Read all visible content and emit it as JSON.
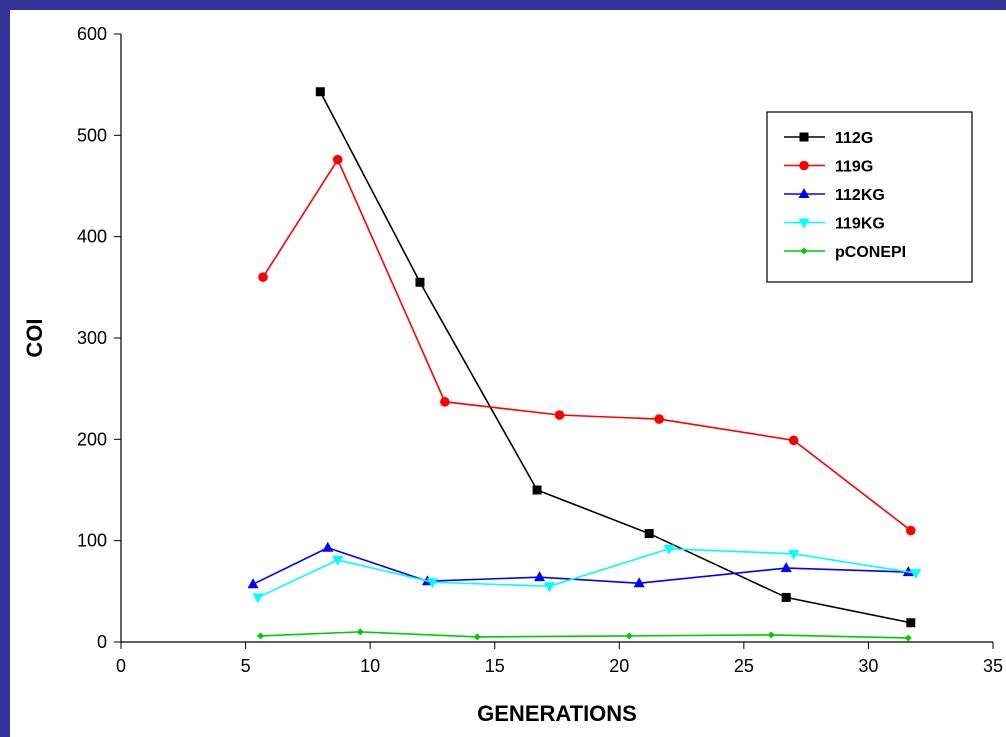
{
  "chart_data": {
    "type": "line",
    "xlabel": "GENERATIONS",
    "ylabel": "COI",
    "xlim": [
      0,
      35
    ],
    "ylim": [
      0,
      600
    ],
    "x_ticks": [
      0,
      5,
      10,
      15,
      20,
      25,
      30,
      35
    ],
    "y_ticks": [
      0,
      100,
      200,
      300,
      400,
      500,
      600
    ],
    "grid": false,
    "legend_position": "top-right",
    "series": [
      {
        "name": "112G",
        "color": "#000000",
        "marker": "square",
        "x": [
          8.0,
          12.0,
          16.7,
          21.2,
          26.7,
          31.7
        ],
        "y": [
          543,
          355,
          150,
          107,
          44,
          19
        ]
      },
      {
        "name": "119G",
        "color": "#ff0000",
        "marker": "circle",
        "x": [
          5.7,
          8.7,
          13.0,
          17.6,
          21.6,
          27.0,
          31.7
        ],
        "y": [
          360,
          476,
          237,
          224,
          220,
          199,
          110
        ]
      },
      {
        "name": "112KG",
        "color": "#0000ff",
        "marker": "triangle-up",
        "x": [
          5.3,
          8.3,
          12.3,
          16.8,
          20.8,
          26.7,
          31.6
        ],
        "y": [
          57,
          93,
          60,
          64,
          58,
          73,
          69
        ]
      },
      {
        "name": "119KG",
        "color": "#00ffff",
        "marker": "triangle-down",
        "x": [
          5.5,
          8.7,
          12.5,
          17.2,
          22.0,
          27.0,
          31.9
        ],
        "y": [
          44,
          81,
          59,
          55,
          92,
          87,
          68
        ]
      },
      {
        "name": "pCONEPI",
        "color": "#00cc00",
        "marker": "diamond",
        "x": [
          5.6,
          9.6,
          14.3,
          20.4,
          26.1,
          31.6
        ],
        "y": [
          6,
          10,
          5,
          6,
          7,
          4
        ]
      }
    ]
  }
}
